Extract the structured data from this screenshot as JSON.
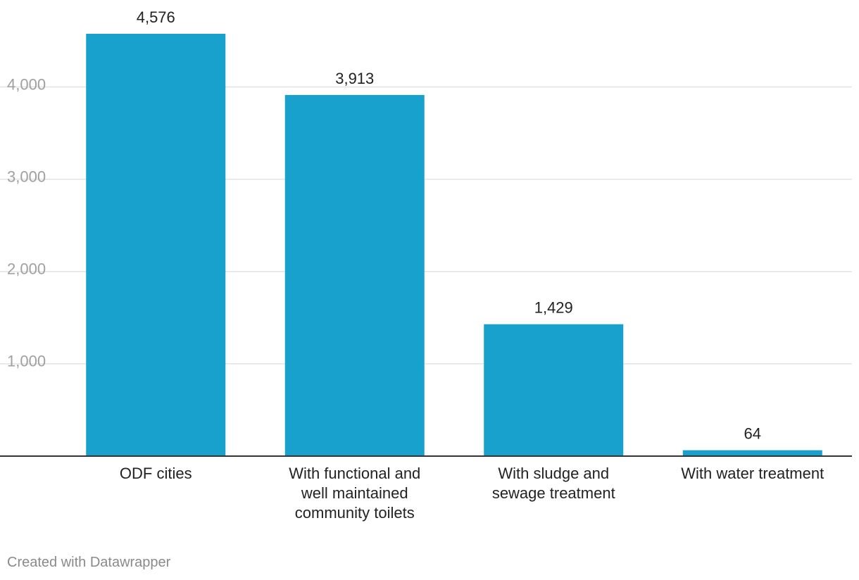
{
  "chart_data": {
    "type": "bar",
    "categories": [
      "ODF cities",
      "With functional and well maintained community toilets",
      "With sludge and sewage treatment",
      "With water treatment"
    ],
    "category_lines": [
      [
        "ODF cities"
      ],
      [
        "With functional and",
        "well maintained",
        "community toilets"
      ],
      [
        "With sludge and",
        "sewage treatment"
      ],
      [
        "With water treatment"
      ]
    ],
    "values": [
      4576,
      3913,
      1429,
      64
    ],
    "value_labels": [
      "4,576",
      "3,913",
      "1,429",
      "64"
    ],
    "y_ticks": [
      1000,
      2000,
      3000,
      4000
    ],
    "y_tick_labels": [
      "1,000",
      "2,000",
      "3,000",
      "4,000"
    ],
    "ylim": [
      0,
      4576
    ],
    "grid": true,
    "legend": "none",
    "colors": {
      "bar": "#18a1cd",
      "grid": "#e3e3e3",
      "axis": "#333333"
    }
  },
  "footer": {
    "credit": "Created with Datawrapper"
  }
}
